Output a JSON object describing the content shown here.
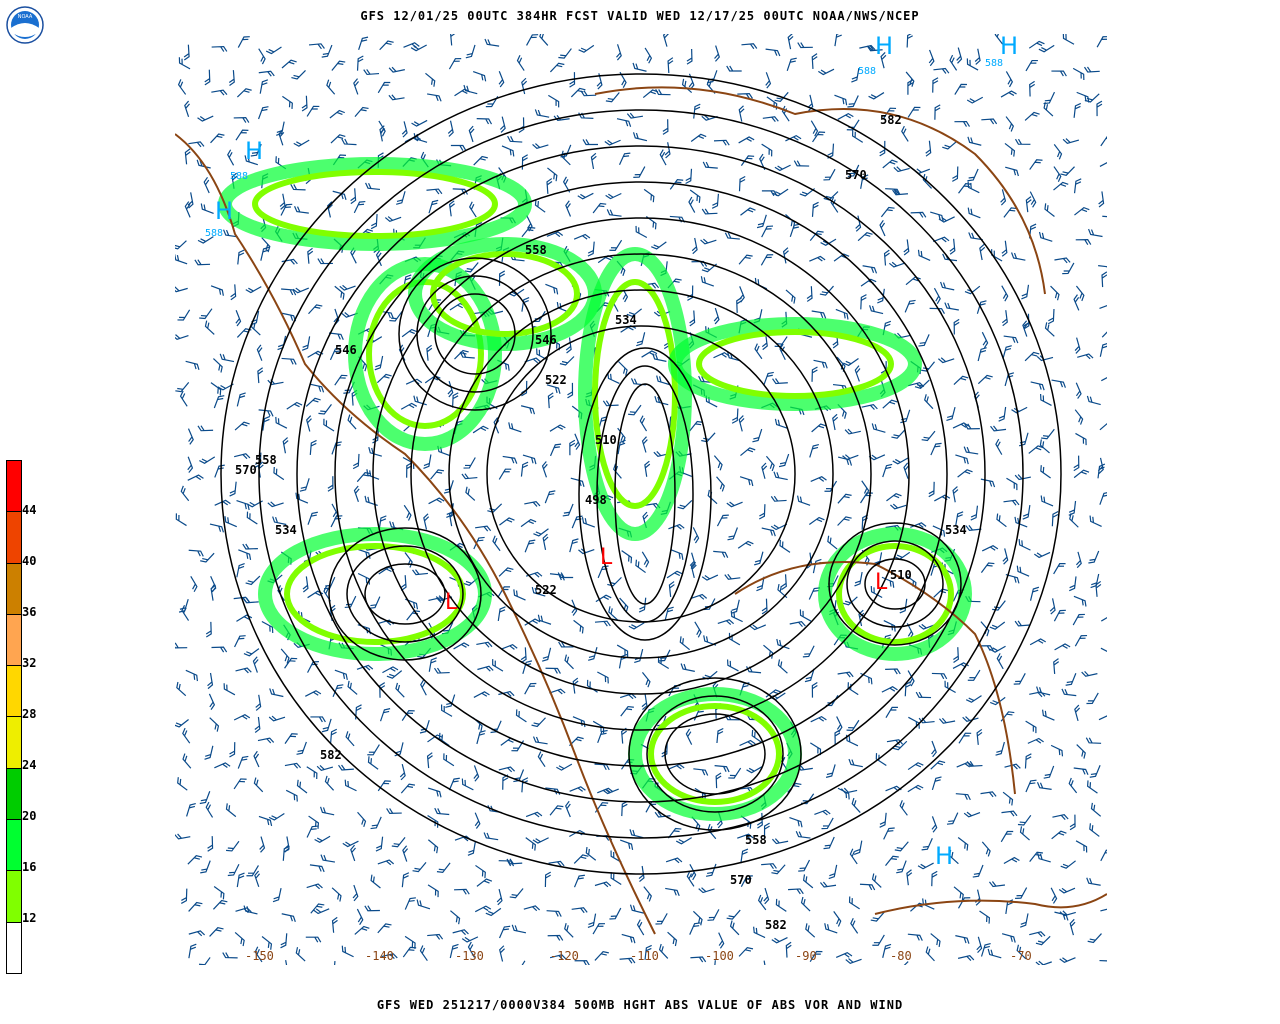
{
  "header": {
    "title": "GFS 12/01/25 00UTC 384HR FCST VALID WED 12/17/25 00UTC NOAA/NWS/NCEP"
  },
  "footer": {
    "caption": "GFS WED 251217/0000V384 500MB HGHT ABS VALUE OF ABS VOR AND WIND"
  },
  "logo": {
    "text": "NOAA"
  },
  "colorbar": {
    "labels": [
      "44",
      "40",
      "36",
      "32",
      "28",
      "24",
      "20",
      "16",
      "12"
    ],
    "colors": [
      "#ff0000",
      "#ee4400",
      "#cc8000",
      "#ffa550",
      "#ffd700",
      "#eeee00",
      "#00cc00",
      "#00ff30",
      "#80ff00",
      "#ffffff"
    ]
  },
  "map": {
    "longitude_labels": [
      "-150",
      "-140",
      "-130",
      "-120",
      "-110",
      "-100",
      "-90",
      "-80",
      "-70"
    ],
    "contour_labels": [
      "582",
      "570",
      "558",
      "546",
      "534",
      "522",
      "510",
      "498",
      "534",
      "546",
      "558",
      "570",
      "582",
      "558",
      "570",
      "582",
      "534",
      "510",
      "522"
    ],
    "high_symbol": "H",
    "low_symbol": "L",
    "high_values": [
      "588",
      "588",
      "588",
      "588"
    ],
    "colors": {
      "contour": "#000000",
      "barb": "#0a4a8a",
      "coast": "#8b4513",
      "high": "#00aaff",
      "low": "#ff0000",
      "grid": "#b05020"
    }
  }
}
